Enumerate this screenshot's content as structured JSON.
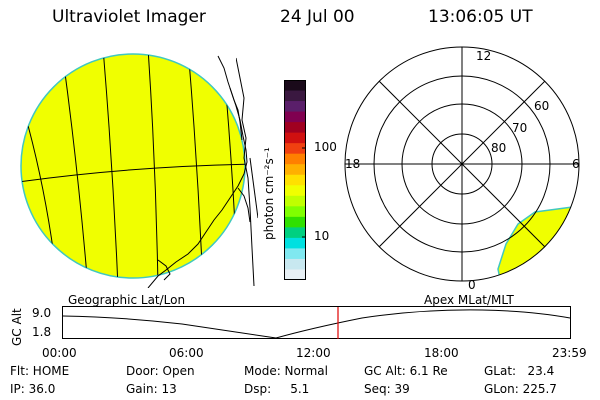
{
  "header": {
    "instrument": "Ultraviolet Imager",
    "date": "24 Jul 00",
    "time": "13:06:05 UT"
  },
  "colorbar": {
    "unit_label": "photon cm⁻²s⁻¹",
    "ticks": [
      "100",
      "10"
    ],
    "colors": [
      "#1a0a1a",
      "#3a1840",
      "#5a1f6a",
      "#800050",
      "#a00020",
      "#d01010",
      "#f04010",
      "#ff8000",
      "#ffb000",
      "#ffe000",
      "#f0ff00",
      "#c0ff00",
      "#80ff00",
      "#30e000",
      "#00d080",
      "#00e0e0",
      "#80e8f0",
      "#c8e8f0",
      "#e8f0f5"
    ]
  },
  "polar_plot": {
    "mlt_labels": {
      "top": "12",
      "left": "18",
      "right": "6",
      "bottom": "0"
    },
    "lat_labels": [
      "60",
      "70",
      "80"
    ],
    "fill_color": "#f0ff00"
  },
  "geo_plot": {
    "fill_color": "#f0ff00"
  },
  "projection_labels": {
    "left": "Geographic Lat/Lon",
    "right": "Apex MLat/MLT"
  },
  "altitude_plot": {
    "axis_label": "GC Alt",
    "y_ticks": [
      "9.0",
      "1.8"
    ],
    "x_ticks": [
      "00:00",
      "06:00",
      "12:00",
      "18:00",
      "23:59"
    ],
    "current_marker_color": "#e00000"
  },
  "status": {
    "flt": "Flt: HOME",
    "ip": "IP: 36.0",
    "door": "Door: Open",
    "gain": "Gain: 13",
    "mode": "Mode: Normal",
    "dsp": "Dsp:     5.1",
    "gc_alt": "GC Alt: 6.1 Re",
    "seq": "Seq: 39",
    "glat": "GLat:   23.4",
    "glon": "GLon: 225.7"
  }
}
